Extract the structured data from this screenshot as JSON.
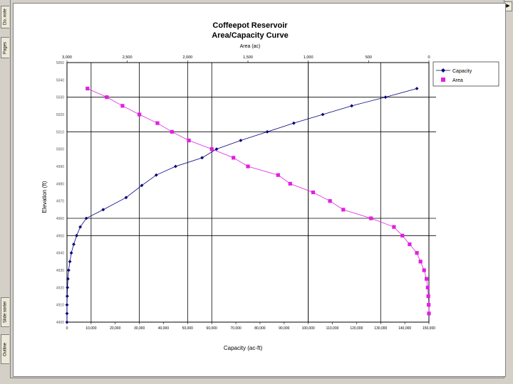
{
  "ui": {
    "tabs": [
      "Pages",
      "Do. note",
      "Slide sorter",
      "Outline"
    ],
    "scroll_up_glyph": "▶"
  },
  "chart_data": {
    "type": "line",
    "title": "Coffeepot Reservoir",
    "subtitle": "Area/Capacity Curve",
    "xlabel": "Capacity (ac-ft)",
    "x2label": "Area (ac)",
    "ylabel": "Elevation (ft)",
    "xlim": [
      0,
      150000
    ],
    "x2lim": [
      3000,
      0
    ],
    "ylim": [
      4900,
      5050
    ],
    "x_ticks": [
      "0",
      "10,000",
      "20,000",
      "30,000",
      "40,000",
      "50,000",
      "60,000",
      "70,000",
      "80,000",
      "90,000",
      "100,000",
      "110,000",
      "120,000",
      "130,000",
      "140,000",
      "150,000"
    ],
    "x2_ticks": [
      "3,000",
      "2,500",
      "2,000",
      "1,500",
      "1,000",
      "500",
      "0"
    ],
    "y_ticks": [
      "4900",
      "4910",
      "4920",
      "4930",
      "4940",
      "4950",
      "4960",
      "4970",
      "4980",
      "4990",
      "5000",
      "5010",
      "5020",
      "5030",
      "5040",
      "5050"
    ],
    "legend_position": "top-right",
    "colors": {
      "capacity": "#00007a",
      "area": "#e020e0"
    },
    "series": [
      {
        "name": "Capacity",
        "axis": "bottom",
        "marker": "diamond",
        "points": [
          [
            0,
            4900
          ],
          [
            0,
            4905
          ],
          [
            0,
            4910
          ],
          [
            100,
            4915
          ],
          [
            200,
            4920
          ],
          [
            400,
            4925
          ],
          [
            700,
            4930
          ],
          [
            1200,
            4935
          ],
          [
            1800,
            4940
          ],
          [
            2800,
            4945
          ],
          [
            4000,
            4950
          ],
          [
            5500,
            4955
          ],
          [
            8000,
            4960
          ],
          [
            15000,
            4965
          ],
          [
            24500,
            4972
          ],
          [
            31000,
            4979
          ],
          [
            37000,
            4985
          ],
          [
            45000,
            4990
          ],
          [
            56000,
            4995
          ],
          [
            62000,
            5000
          ],
          [
            72000,
            5005
          ],
          [
            83000,
            5010
          ],
          [
            94000,
            5015
          ],
          [
            106000,
            5020
          ],
          [
            118000,
            5025
          ],
          [
            132000,
            5030
          ],
          [
            145000,
            5035
          ]
        ]
      },
      {
        "name": "Area",
        "axis": "top",
        "marker": "square",
        "points": [
          [
            2830,
            5035
          ],
          [
            2670,
            5030
          ],
          [
            2540,
            5025
          ],
          [
            2400,
            5020
          ],
          [
            2250,
            5015
          ],
          [
            2130,
            5010
          ],
          [
            1990,
            5005
          ],
          [
            1800,
            5000
          ],
          [
            1620,
            4995
          ],
          [
            1500,
            4990
          ],
          [
            1250,
            4985
          ],
          [
            1150,
            4980
          ],
          [
            960,
            4975
          ],
          [
            820,
            4970
          ],
          [
            710,
            4965
          ],
          [
            480,
            4960
          ],
          [
            290,
            4955
          ],
          [
            220,
            4950
          ],
          [
            160,
            4945
          ],
          [
            100,
            4940
          ],
          [
            70,
            4935
          ],
          [
            40,
            4930
          ],
          [
            20,
            4925
          ],
          [
            10,
            4920
          ],
          [
            5,
            4915
          ],
          [
            2,
            4910
          ],
          [
            0,
            4905
          ]
        ]
      }
    ]
  }
}
